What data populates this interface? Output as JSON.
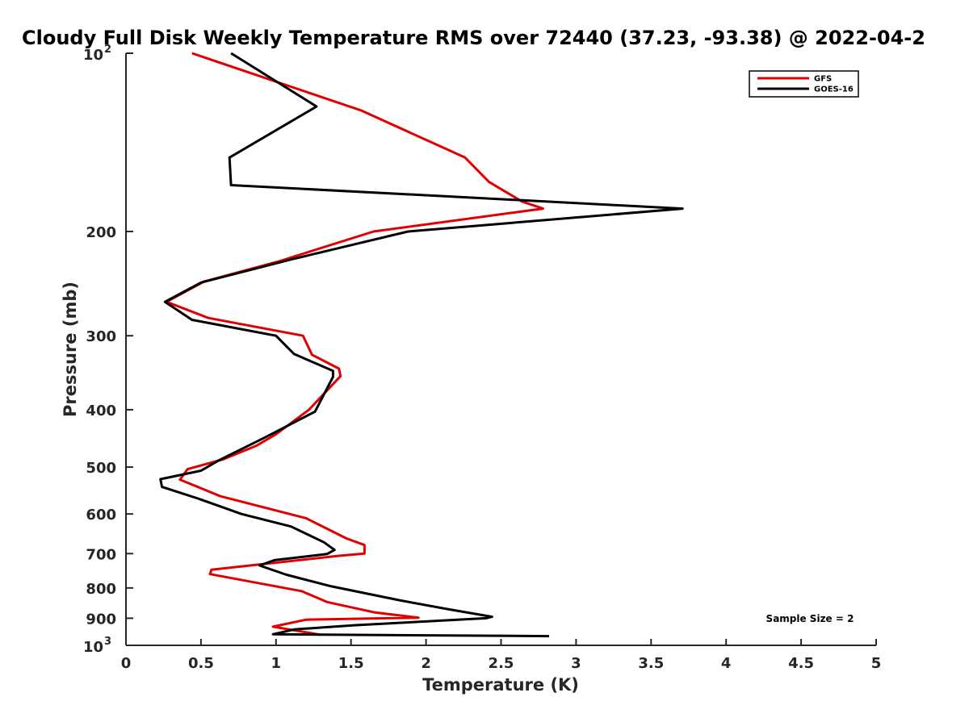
{
  "chart_data": {
    "type": "line",
    "title": "Cloudy Full Disk Weekly Temperature RMS over 72440 (37.23, -93.38) @ 2022-04-2",
    "xlabel": "Temperature (K)",
    "ylabel": "Pressure (mb)",
    "xlim": [
      0,
      5
    ],
    "ylim": [
      100,
      1000
    ],
    "y_scale": "log",
    "y_reversed": true,
    "grid": false,
    "legend_position": "top-right",
    "x_ticks": [
      "0",
      "0.5",
      "1",
      "1.5",
      "2",
      "2.5",
      "3",
      "3.5",
      "4",
      "4.5",
      "5"
    ],
    "y_ticks": [
      {
        "value": 100,
        "label": "10",
        "sup": "2"
      },
      {
        "value": 200,
        "label": "200"
      },
      {
        "value": 300,
        "label": "300"
      },
      {
        "value": 400,
        "label": "400"
      },
      {
        "value": 500,
        "label": "500"
      },
      {
        "value": 600,
        "label": "600"
      },
      {
        "value": 700,
        "label": "700"
      },
      {
        "value": 800,
        "label": "800"
      },
      {
        "value": 900,
        "label": "900"
      },
      {
        "value": 1000,
        "label": "10",
        "sup": "3"
      }
    ],
    "series": [
      {
        "name": "GFS",
        "color": "#e00000",
        "points": [
          [
            0.44,
            100
          ],
          [
            1.57,
            125
          ],
          [
            2.26,
            150
          ],
          [
            2.42,
            165
          ],
          [
            2.64,
            178
          ],
          [
            2.78,
            183
          ],
          [
            1.65,
            200
          ],
          [
            1.01,
            225
          ],
          [
            0.52,
            243
          ],
          [
            0.27,
            263
          ],
          [
            0.55,
            280
          ],
          [
            1.18,
            300
          ],
          [
            1.24,
            323
          ],
          [
            1.42,
            341
          ],
          [
            1.43,
            351
          ],
          [
            1.22,
            400
          ],
          [
            1.0,
            440
          ],
          [
            0.87,
            460
          ],
          [
            0.65,
            485
          ],
          [
            0.41,
            504
          ],
          [
            0.36,
            525
          ],
          [
            0.63,
            560
          ],
          [
            1.2,
            610
          ],
          [
            1.47,
            660
          ],
          [
            1.59,
            677
          ],
          [
            1.59,
            700
          ],
          [
            1.42,
            706
          ],
          [
            0.57,
            745
          ],
          [
            0.56,
            758
          ],
          [
            1.17,
            810
          ],
          [
            1.34,
            845
          ],
          [
            1.66,
            880
          ],
          [
            1.95,
            898
          ],
          [
            1.2,
            905
          ],
          [
            0.98,
            930
          ],
          [
            1.3,
            960
          ]
        ]
      },
      {
        "name": "GOES-16",
        "color": "#000000",
        "points": [
          [
            0.7,
            100
          ],
          [
            1.27,
            123
          ],
          [
            0.69,
            150
          ],
          [
            0.7,
            167
          ],
          [
            3.71,
            183
          ],
          [
            1.88,
            200
          ],
          [
            1.1,
            223
          ],
          [
            0.5,
            244
          ],
          [
            0.26,
            263
          ],
          [
            0.44,
            282
          ],
          [
            1.0,
            300
          ],
          [
            1.12,
            322
          ],
          [
            1.38,
            344
          ],
          [
            1.38,
            352
          ],
          [
            1.26,
            403
          ],
          [
            0.93,
            445
          ],
          [
            0.62,
            487
          ],
          [
            0.5,
            507
          ],
          [
            0.23,
            524
          ],
          [
            0.24,
            540
          ],
          [
            0.48,
            565
          ],
          [
            0.77,
            600
          ],
          [
            1.1,
            630
          ],
          [
            1.32,
            670
          ],
          [
            1.39,
            690
          ],
          [
            1.34,
            701
          ],
          [
            0.99,
            718
          ],
          [
            0.89,
            733
          ],
          [
            1.07,
            760
          ],
          [
            1.37,
            795
          ],
          [
            1.83,
            840
          ],
          [
            2.16,
            870
          ],
          [
            2.44,
            895
          ],
          [
            2.4,
            900
          ],
          [
            1.52,
            925
          ],
          [
            1.12,
            940
          ],
          [
            0.98,
            958
          ],
          [
            2.82,
            965
          ]
        ]
      }
    ],
    "legend": [
      "GFS",
      "GOES-16"
    ],
    "annotations": [
      "Sample Size = 2"
    ]
  }
}
